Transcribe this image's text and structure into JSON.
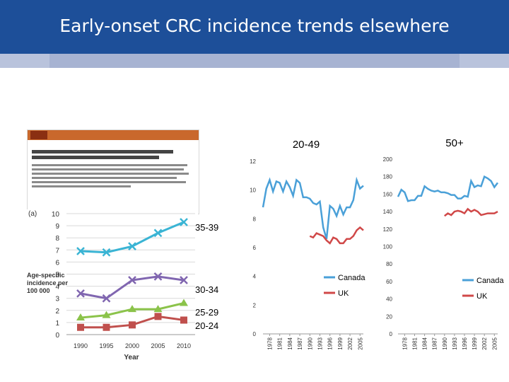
{
  "slide": {
    "title": "Early-onset CRC incidence trends elsewhere"
  },
  "colors": {
    "header_bg": "#1d4f99",
    "australia_35_39": "#3ab4d4",
    "australia_30_34": "#8066b0",
    "australia_25_29": "#8bc34a",
    "australia_20_24": "#c0504d",
    "canada": "#4aa0d8",
    "uk": "#d04848"
  },
  "chart_data": [
    {
      "type": "line",
      "panel_label": "(a)",
      "ylabel": "Age-specific incidence per 100 000",
      "xlabel": "Year",
      "x": [
        1990,
        1995,
        2000,
        2005,
        2010
      ],
      "ylim": [
        0,
        10
      ],
      "yticks": [
        0,
        1,
        2,
        3,
        4,
        5,
        6,
        7,
        8,
        9,
        10
      ],
      "series": [
        {
          "name": "35-39",
          "values": [
            6.9,
            6.8,
            7.3,
            8.4,
            9.3
          ]
        },
        {
          "name": "30-34",
          "values": [
            3.4,
            3.0,
            4.5,
            4.8,
            4.5
          ]
        },
        {
          "name": "25-29",
          "values": [
            1.4,
            1.6,
            2.1,
            2.1,
            2.6
          ]
        },
        {
          "name": "20-24",
          "values": [
            0.6,
            0.6,
            0.8,
            1.5,
            1.2
          ]
        }
      ]
    },
    {
      "type": "line",
      "title": "20-49",
      "xticks": [
        "1978",
        "1981",
        "1984",
        "1987",
        "1990",
        "1993",
        "1996",
        "1999",
        "2002",
        "2005"
      ],
      "ylim": [
        0,
        12
      ],
      "yticks": [
        0,
        2,
        4,
        6,
        8,
        10,
        12
      ],
      "legend": "right",
      "series": [
        {
          "name": "Canada",
          "x": [
            1976,
            1977,
            1978,
            1979,
            1980,
            1981,
            1982,
            1983,
            1984,
            1985,
            1986,
            1987,
            1988,
            1989,
            1990,
            1991,
            1992,
            1993,
            1994,
            1995,
            1996,
            1997,
            1998,
            1999,
            2000,
            2001,
            2002,
            2003,
            2004,
            2005,
            2006
          ],
          "values": [
            8.8,
            10.1,
            10.7,
            9.9,
            10.6,
            10.5,
            9.9,
            10.6,
            10.2,
            9.6,
            10.7,
            10.5,
            9.5,
            9.5,
            9.4,
            9.1,
            9.0,
            9.2,
            7.4,
            6.6,
            8.9,
            8.7,
            8.2,
            8.9,
            8.3,
            8.8,
            8.8,
            9.3,
            10.7,
            10.1,
            10.3
          ]
        },
        {
          "name": "UK",
          "x": [
            1990,
            1991,
            1992,
            1993,
            1994,
            1995,
            1996,
            1997,
            1998,
            1999,
            2000,
            2001,
            2002,
            2003,
            2004,
            2005,
            2006
          ],
          "values": [
            6.8,
            6.7,
            7.0,
            6.9,
            6.8,
            6.5,
            6.3,
            6.7,
            6.6,
            6.3,
            6.3,
            6.6,
            6.6,
            6.8,
            7.2,
            7.4,
            7.2
          ]
        }
      ]
    },
    {
      "type": "line",
      "title": "50+",
      "xticks": [
        "1978",
        "1981",
        "1984",
        "1987",
        "1990",
        "1993",
        "1996",
        "1999",
        "2002",
        "2005"
      ],
      "ylim": [
        0,
        200
      ],
      "yticks": [
        0,
        20,
        40,
        60,
        80,
        100,
        120,
        140,
        160,
        180,
        200
      ],
      "legend": "right",
      "series": [
        {
          "name": "Canada",
          "x": [
            1976,
            1977,
            1978,
            1979,
            1980,
            1981,
            1982,
            1983,
            1984,
            1985,
            1986,
            1987,
            1988,
            1989,
            1990,
            1991,
            1992,
            1993,
            1994,
            1995,
            1996,
            1997,
            1998,
            1999,
            2000,
            2001,
            2002,
            2003,
            2004,
            2005,
            2006
          ],
          "values": [
            157,
            165,
            162,
            152,
            153,
            153,
            158,
            158,
            169,
            166,
            164,
            163,
            164,
            162,
            162,
            161,
            159,
            159,
            155,
            155,
            158,
            157,
            175,
            168,
            170,
            169,
            180,
            178,
            175,
            168,
            173
          ]
        },
        {
          "name": "UK",
          "x": [
            1990,
            1991,
            1992,
            1993,
            1994,
            1995,
            1996,
            1997,
            1998,
            1999,
            2000,
            2001,
            2002,
            2003,
            2004,
            2005,
            2006
          ],
          "values": [
            135,
            138,
            136,
            140,
            141,
            140,
            138,
            143,
            140,
            142,
            140,
            136,
            137,
            138,
            138,
            138,
            140
          ]
        }
      ]
    }
  ]
}
